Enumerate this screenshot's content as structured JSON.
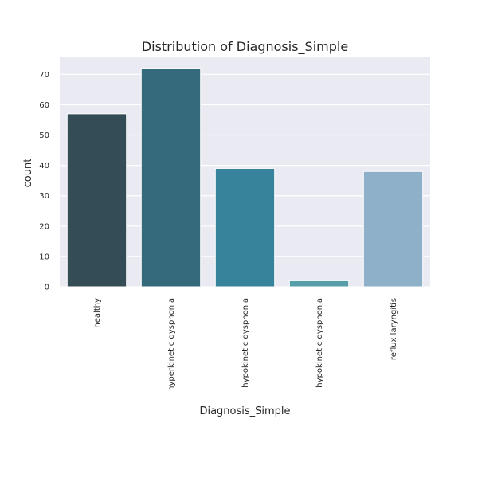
{
  "chart_data": {
    "type": "bar",
    "title": "Distribution of Diagnosis_Simple",
    "xlabel": "Diagnosis_Simple",
    "ylabel": "count",
    "categories": [
      "healthy",
      "hyperkinetic dysphonia",
      "hypokinetic dysphonia",
      "hypokinetic dysphonia",
      "reflux laryngitis"
    ],
    "values": [
      57,
      72,
      39,
      2,
      38
    ],
    "colors": [
      "#344c56",
      "#346a7c",
      "#37839c",
      "#569ea8",
      "#8eb0c8"
    ],
    "ylim": [
      0,
      75.6
    ],
    "yticks": [
      0,
      10,
      20,
      30,
      40,
      50,
      60,
      70
    ],
    "grid": true,
    "background": "#eaeaf2"
  }
}
